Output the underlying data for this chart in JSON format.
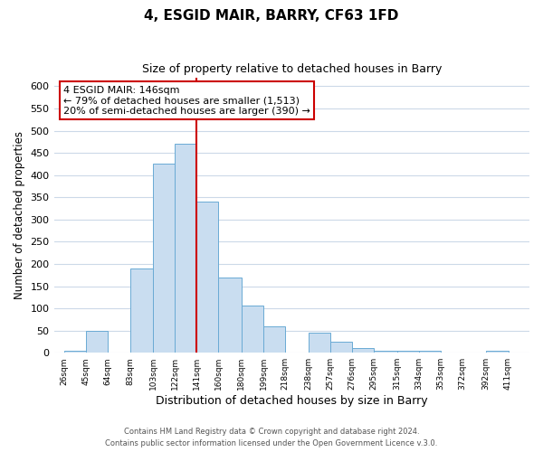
{
  "title": "4, ESGID MAIR, BARRY, CF63 1FD",
  "subtitle": "Size of property relative to detached houses in Barry",
  "xlabel": "Distribution of detached houses by size in Barry",
  "ylabel": "Number of detached properties",
  "bar_left_edges": [
    26,
    45,
    64,
    83,
    103,
    122,
    141,
    160,
    180,
    199,
    218,
    238,
    257,
    276,
    295,
    315,
    334,
    353,
    372,
    392
  ],
  "bar_heights": [
    5,
    50,
    0,
    190,
    425,
    470,
    340,
    170,
    107,
    60,
    0,
    45,
    25,
    10,
    5,
    5,
    5,
    0,
    0,
    5
  ],
  "bar_color": "#c9ddf0",
  "bar_edgecolor": "#6aaad4",
  "tick_labels": [
    "26sqm",
    "45sqm",
    "64sqm",
    "83sqm",
    "103sqm",
    "122sqm",
    "141sqm",
    "160sqm",
    "180sqm",
    "199sqm",
    "218sqm",
    "238sqm",
    "257sqm",
    "276sqm",
    "295sqm",
    "315sqm",
    "334sqm",
    "353sqm",
    "372sqm",
    "392sqm",
    "411sqm"
  ],
  "tick_positions": [
    26,
    45,
    64,
    83,
    103,
    122,
    141,
    160,
    180,
    199,
    218,
    238,
    257,
    276,
    295,
    315,
    334,
    353,
    372,
    392,
    411
  ],
  "vline_x": 141,
  "vline_color": "#cc0000",
  "ylim": [
    0,
    620
  ],
  "xlim": [
    17,
    430
  ],
  "yticks": [
    0,
    50,
    100,
    150,
    200,
    250,
    300,
    350,
    400,
    450,
    500,
    550,
    600
  ],
  "annotation_title": "4 ESGID MAIR: 146sqm",
  "annotation_line1": "← 79% of detached houses are smaller (1,513)",
  "annotation_line2": "20% of semi-detached houses are larger (390) →",
  "footer1": "Contains HM Land Registry data © Crown copyright and database right 2024.",
  "footer2": "Contains public sector information licensed under the Open Government Licence v.3.0.",
  "background_color": "#ffffff",
  "grid_color": "#ccd9e8"
}
